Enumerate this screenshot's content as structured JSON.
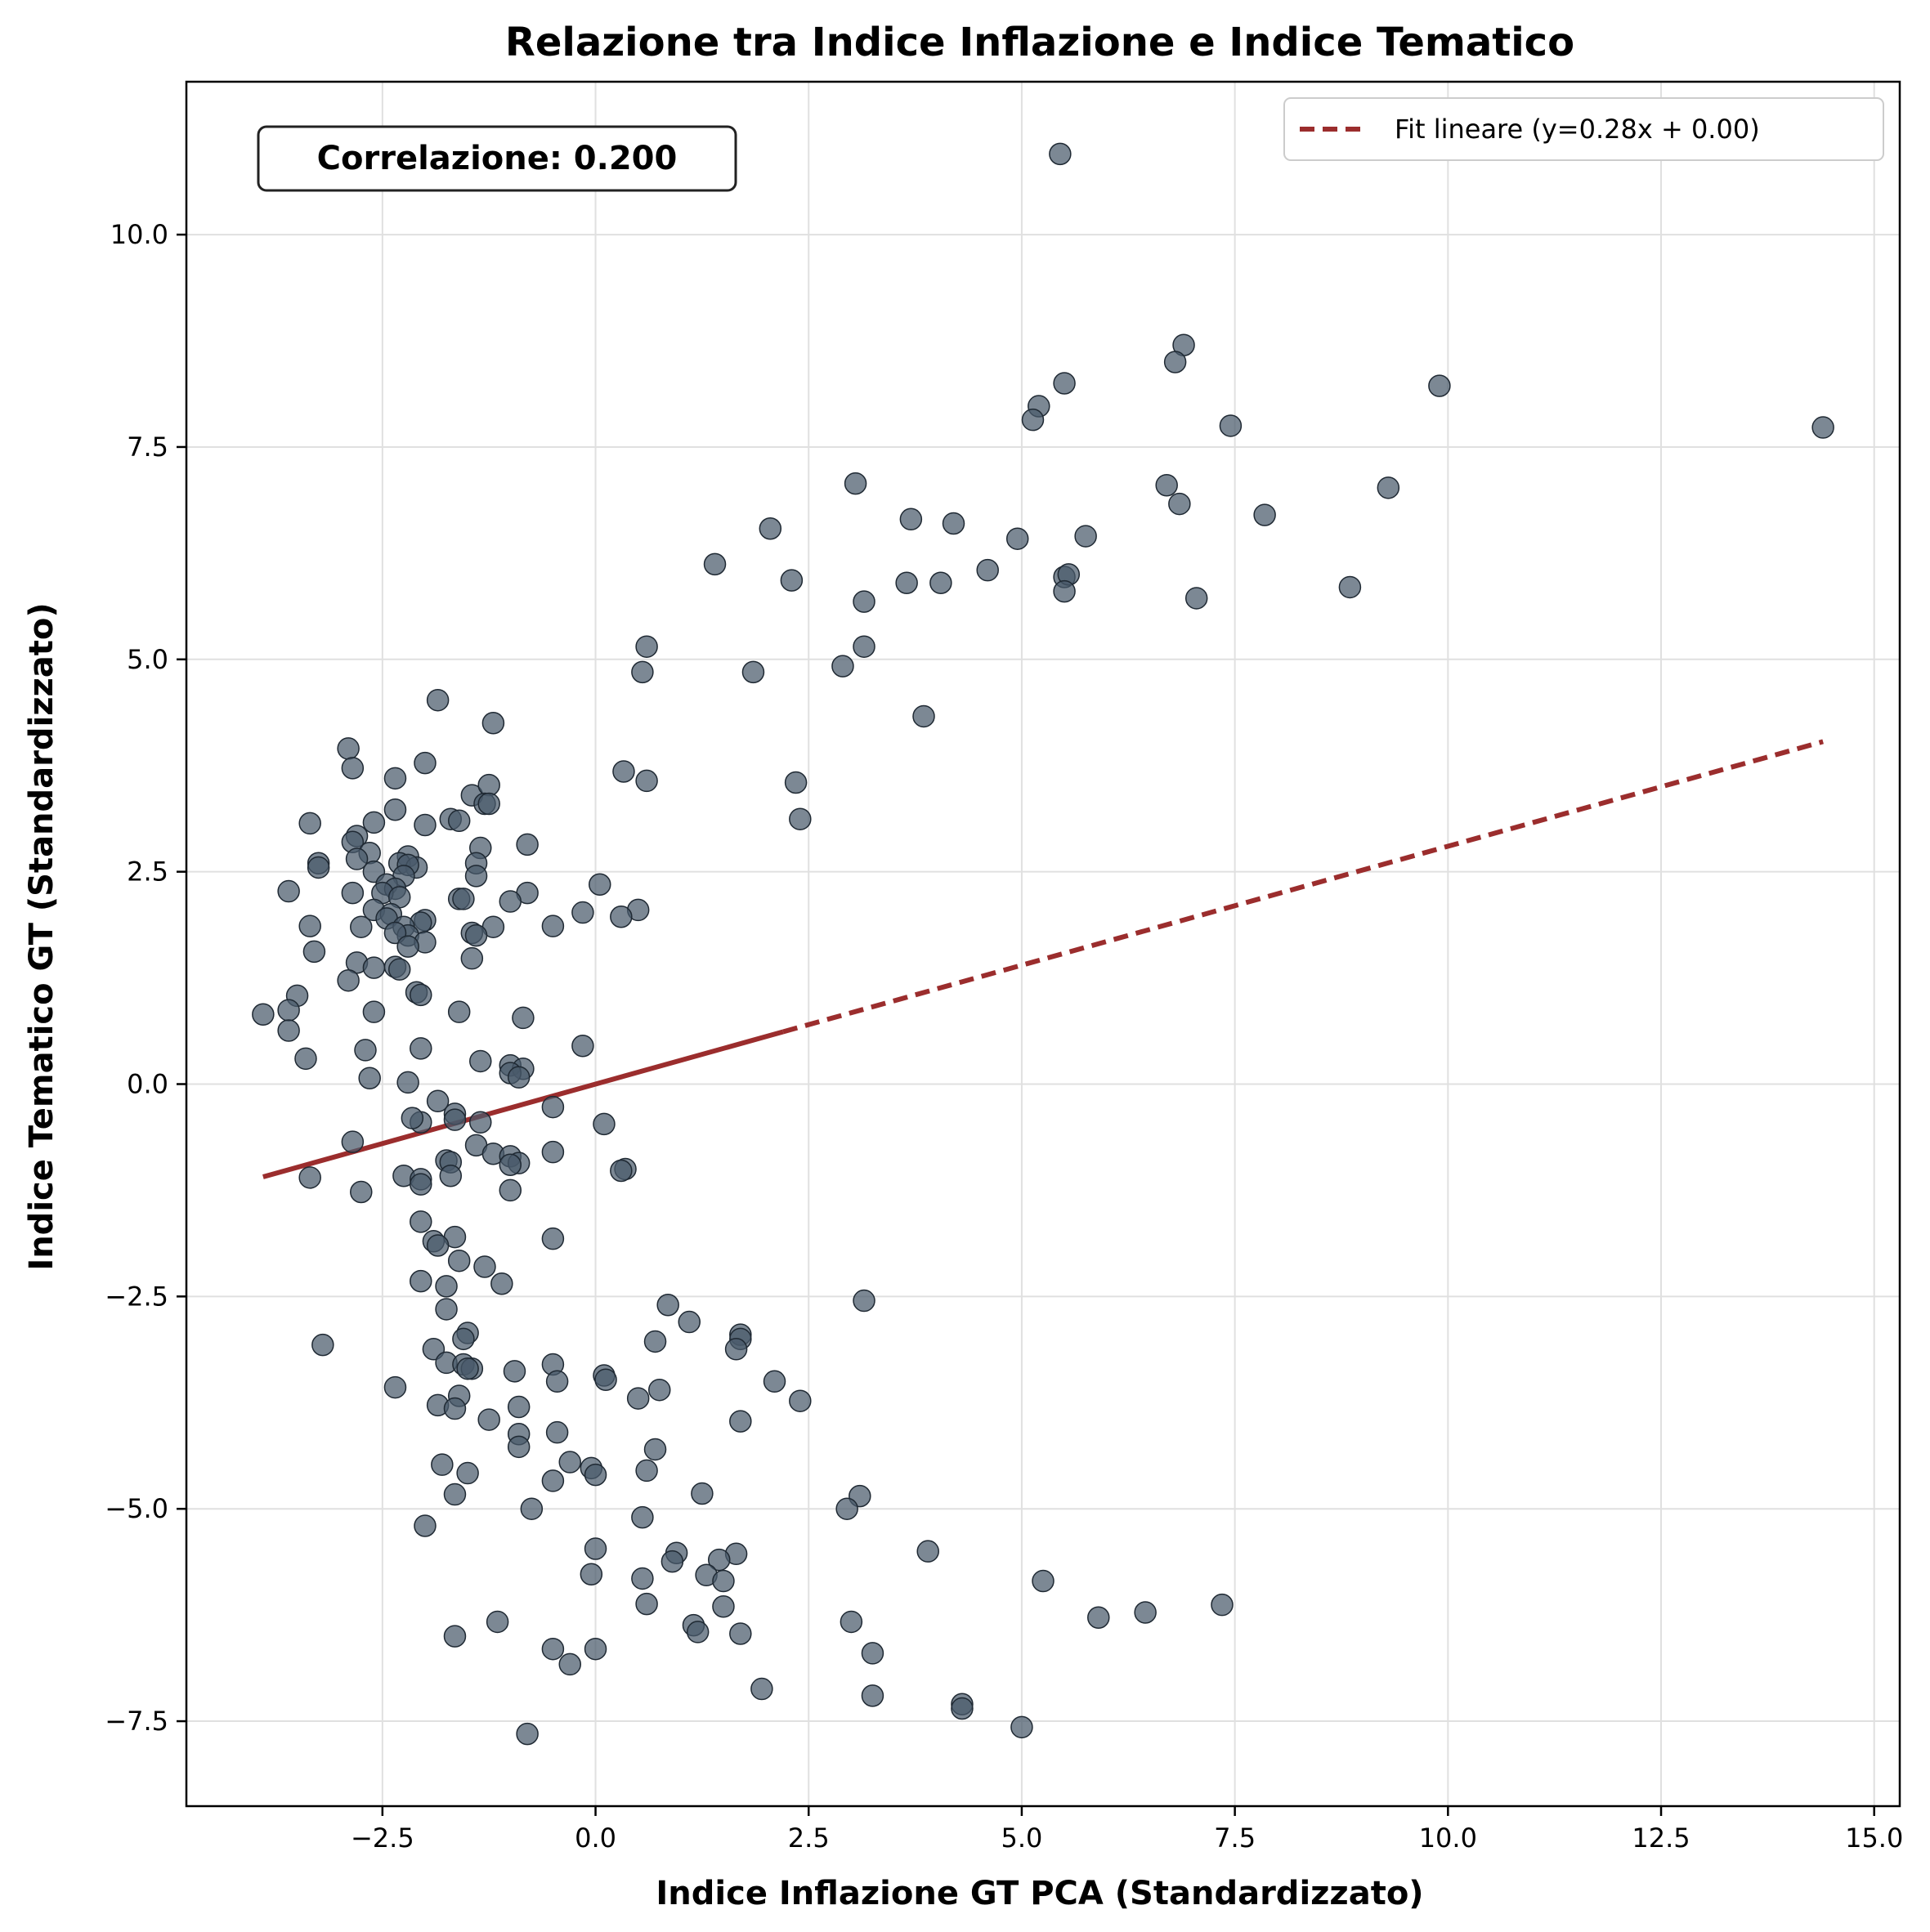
{
  "colors": {
    "points": "#4a5a6b",
    "point_edge": "#1f2933",
    "fit_line": "#9b2d2d",
    "grid": "#e0e0e0",
    "axes": "#000000"
  },
  "chart_data": {
    "type": "scatter",
    "title": "Relazione tra Indice Inflazione e Indice Tematico",
    "xlabel": "Indice Inflazione GT PCA (Standardizzato)",
    "ylabel": "Indice Tematico GT (Standardizzato)",
    "xlim": [
      -4.8,
      15.3
    ],
    "ylim": [
      -8.5,
      11.8
    ],
    "xticks": [
      -2.5,
      0.0,
      2.5,
      5.0,
      7.5,
      10.0,
      12.5,
      15.0
    ],
    "xtick_labels": [
      "−2.5",
      "0.0",
      "2.5",
      "5.0",
      "7.5",
      "10.0",
      "12.5",
      "15.0"
    ],
    "yticks": [
      -7.5,
      -5.0,
      -2.5,
      0.0,
      2.5,
      5.0,
      7.5,
      10.0
    ],
    "ytick_labels": [
      "−7.5",
      "−5.0",
      "−2.5",
      "0.0",
      "2.5",
      "5.0",
      "7.5",
      "10.0"
    ],
    "grid": true,
    "legend": {
      "position": "top-right",
      "entries": [
        "Fit lineare (y=0.28x + 0.00)"
      ]
    },
    "annotation": "Correlazione: 0.200",
    "fit_line": {
      "slope": 0.28,
      "intercept": 0.0,
      "x_start": -3.9,
      "x_end": 14.4,
      "solid_until": 2.2
    },
    "points": [
      [
        5.45,
        10.95
      ],
      [
        6.9,
        8.7
      ],
      [
        6.8,
        8.5
      ],
      [
        5.5,
        8.25
      ],
      [
        9.9,
        8.22
      ],
      [
        14.4,
        7.73
      ],
      [
        7.45,
        7.75
      ],
      [
        5.2,
        7.98
      ],
      [
        5.13,
        7.82
      ],
      [
        3.05,
        7.07
      ],
      [
        6.7,
        7.05
      ],
      [
        9.3,
        7.02
      ],
      [
        6.85,
        6.83
      ],
      [
        7.85,
        6.7
      ],
      [
        3.7,
        6.65
      ],
      [
        4.2,
        6.6
      ],
      [
        2.05,
        6.54
      ],
      [
        5.75,
        6.45
      ],
      [
        4.95,
        6.42
      ],
      [
        1.4,
        6.12
      ],
      [
        4.6,
        6.05
      ],
      [
        5.5,
        5.97
      ],
      [
        5.55,
        6.0
      ],
      [
        2.3,
        5.93
      ],
      [
        3.65,
        5.9
      ],
      [
        4.05,
        5.9
      ],
      [
        8.85,
        5.85
      ],
      [
        5.5,
        5.8
      ],
      [
        7.05,
        5.72
      ],
      [
        3.15,
        5.68
      ],
      [
        0.6,
        5.15
      ],
      [
        3.15,
        5.15
      ],
      [
        2.9,
        4.92
      ],
      [
        1.85,
        4.85
      ],
      [
        0.55,
        4.85
      ],
      [
        3.85,
        4.33
      ],
      [
        -1.85,
        4.52
      ],
      [
        -1.2,
        4.25
      ],
      [
        -2.9,
        3.95
      ],
      [
        -2.85,
        3.72
      ],
      [
        -2.0,
        3.78
      ],
      [
        0.33,
        3.68
      ],
      [
        -2.35,
        3.6
      ],
      [
        0.6,
        3.57
      ],
      [
        2.35,
        3.55
      ],
      [
        -1.45,
        3.4
      ],
      [
        -1.25,
        3.52
      ],
      [
        -1.3,
        3.3
      ],
      [
        -1.25,
        3.3
      ],
      [
        2.4,
        3.12
      ],
      [
        -1.7,
        3.12
      ],
      [
        -1.6,
        3.1
      ],
      [
        -3.35,
        3.07
      ],
      [
        -2.6,
        3.08
      ],
      [
        -2.0,
        3.05
      ],
      [
        -2.35,
        3.23
      ],
      [
        -2.8,
        2.92
      ],
      [
        -2.85,
        2.85
      ],
      [
        -1.35,
        2.78
      ],
      [
        -0.8,
        2.82
      ],
      [
        -2.65,
        2.72
      ],
      [
        -2.8,
        2.65
      ],
      [
        -2.2,
        2.68
      ],
      [
        -2.3,
        2.6
      ],
      [
        -2.1,
        2.55
      ],
      [
        -3.25,
        2.6
      ],
      [
        -3.25,
        2.55
      ],
      [
        -1.4,
        2.6
      ],
      [
        -2.2,
        2.58
      ],
      [
        -2.6,
        2.5
      ],
      [
        -1.4,
        2.45
      ],
      [
        -2.25,
        2.45
      ],
      [
        0.05,
        2.35
      ],
      [
        -2.45,
        2.35
      ],
      [
        -2.35,
        2.3
      ],
      [
        -2.5,
        2.25
      ],
      [
        -2.85,
        2.25
      ],
      [
        -3.6,
        2.27
      ],
      [
        -0.8,
        2.25
      ],
      [
        -2.3,
        2.2
      ],
      [
        -1.6,
        2.18
      ],
      [
        -1.55,
        2.18
      ],
      [
        -1.0,
        2.15
      ],
      [
        -2.6,
        2.05
      ],
      [
        -2.4,
        2.0
      ],
      [
        -2.45,
        1.95
      ],
      [
        0.5,
        2.05
      ],
      [
        -0.15,
        2.02
      ],
      [
        0.3,
        1.97
      ],
      [
        -2.0,
        1.93
      ],
      [
        -2.05,
        1.9
      ],
      [
        -2.25,
        1.85
      ],
      [
        -2.75,
        1.85
      ],
      [
        -3.35,
        1.86
      ],
      [
        -1.2,
        1.85
      ],
      [
        -0.5,
        1.86
      ],
      [
        -1.45,
        1.78
      ],
      [
        -2.2,
        1.75
      ],
      [
        -1.4,
        1.75
      ],
      [
        -2.35,
        1.78
      ],
      [
        -2.0,
        1.67
      ],
      [
        -2.2,
        1.62
      ],
      [
        -3.3,
        1.56
      ],
      [
        -1.45,
        1.48
      ],
      [
        -2.35,
        1.38
      ],
      [
        -2.8,
        1.43
      ],
      [
        -2.3,
        1.35
      ],
      [
        -2.6,
        1.37
      ],
      [
        -2.9,
        1.22
      ],
      [
        -2.1,
        1.08
      ],
      [
        -2.05,
        1.05
      ],
      [
        -3.5,
        1.04
      ],
      [
        -1.6,
        0.85
      ],
      [
        -2.6,
        0.85
      ],
      [
        -3.6,
        0.87
      ],
      [
        -3.9,
        0.82
      ],
      [
        -0.85,
        0.78
      ],
      [
        -3.6,
        0.63
      ],
      [
        -0.15,
        0.45
      ],
      [
        -2.05,
        0.42
      ],
      [
        -2.7,
        0.4
      ],
      [
        -3.4,
        0.3
      ],
      [
        -1.35,
        0.27
      ],
      [
        -1.0,
        0.22
      ],
      [
        -0.85,
        0.18
      ],
      [
        -1.0,
        0.13
      ],
      [
        -0.9,
        0.08
      ],
      [
        -2.65,
        0.07
      ],
      [
        -2.2,
        0.02
      ],
      [
        -1.85,
        -0.2
      ],
      [
        -0.5,
        -0.27
      ],
      [
        -1.65,
        -0.35
      ],
      [
        -1.65,
        -0.42
      ],
      [
        -2.05,
        -0.45
      ],
      [
        -2.15,
        -0.4
      ],
      [
        -1.35,
        -0.45
      ],
      [
        0.1,
        -0.47
      ],
      [
        -2.85,
        -0.68
      ],
      [
        -1.4,
        -0.72
      ],
      [
        -0.5,
        -0.8
      ],
      [
        -1.2,
        -0.82
      ],
      [
        -1.0,
        -0.85
      ],
      [
        -1.75,
        -0.9
      ],
      [
        -1.7,
        -0.92
      ],
      [
        -0.9,
        -0.93
      ],
      [
        -1.0,
        -0.95
      ],
      [
        0.35,
        -1.0
      ],
      [
        0.3,
        -1.02
      ],
      [
        -2.25,
        -1.08
      ],
      [
        -1.7,
        -1.08
      ],
      [
        -3.35,
        -1.1
      ],
      [
        -2.05,
        -1.12
      ],
      [
        -2.05,
        -1.18
      ],
      [
        -1.0,
        -1.25
      ],
      [
        -2.75,
        -1.27
      ],
      [
        -2.05,
        -1.62
      ],
      [
        -1.65,
        -1.8
      ],
      [
        -0.5,
        -1.82
      ],
      [
        -1.9,
        -1.85
      ],
      [
        -1.85,
        -1.9
      ],
      [
        -1.6,
        -2.08
      ],
      [
        -1.3,
        -2.15
      ],
      [
        -2.05,
        -2.32
      ],
      [
        -1.1,
        -2.35
      ],
      [
        -1.75,
        -2.38
      ],
      [
        3.15,
        -2.55
      ],
      [
        0.85,
        -2.6
      ],
      [
        -1.75,
        -2.65
      ],
      [
        1.1,
        -2.8
      ],
      [
        -1.5,
        -2.93
      ],
      [
        1.7,
        -2.95
      ],
      [
        -1.55,
        -3.0
      ],
      [
        0.7,
        -3.03
      ],
      [
        1.7,
        -3.0
      ],
      [
        -3.2,
        -3.07
      ],
      [
        -1.9,
        -3.12
      ],
      [
        1.65,
        -3.12
      ],
      [
        -1.75,
        -3.28
      ],
      [
        -0.5,
        -3.3
      ],
      [
        -1.55,
        -3.3
      ],
      [
        -1.45,
        -3.35
      ],
      [
        -1.5,
        -3.35
      ],
      [
        -0.95,
        -3.38
      ],
      [
        0.1,
        -3.43
      ],
      [
        0.12,
        -3.48
      ],
      [
        2.1,
        -3.5
      ],
      [
        -0.45,
        -3.5
      ],
      [
        -2.35,
        -3.57
      ],
      [
        0.75,
        -3.6
      ],
      [
        -1.6,
        -3.67
      ],
      [
        0.5,
        -3.7
      ],
      [
        2.4,
        -3.73
      ],
      [
        -1.85,
        -3.78
      ],
      [
        -0.9,
        -3.8
      ],
      [
        -1.65,
        -3.82
      ],
      [
        -1.25,
        -3.95
      ],
      [
        1.7,
        -3.97
      ],
      [
        -0.45,
        -4.1
      ],
      [
        -0.9,
        -4.12
      ],
      [
        -0.9,
        -4.27
      ],
      [
        0.7,
        -4.3
      ],
      [
        -0.3,
        -4.45
      ],
      [
        -1.8,
        -4.48
      ],
      [
        -0.05,
        -4.52
      ],
      [
        0.6,
        -4.55
      ],
      [
        -1.5,
        -4.58
      ],
      [
        0.0,
        -4.6
      ],
      [
        -0.5,
        -4.67
      ],
      [
        1.25,
        -4.82
      ],
      [
        -1.65,
        -4.83
      ],
      [
        3.1,
        -4.85
      ],
      [
        2.95,
        -5.0
      ],
      [
        -0.75,
        -5.0
      ],
      [
        0.55,
        -5.1
      ],
      [
        -2.0,
        -5.2
      ],
      [
        0.0,
        -5.47
      ],
      [
        3.9,
        -5.5
      ],
      [
        0.95,
        -5.52
      ],
      [
        1.65,
        -5.53
      ],
      [
        0.9,
        -5.62
      ],
      [
        1.45,
        -5.6
      ],
      [
        -0.05,
        -5.77
      ],
      [
        1.3,
        -5.78
      ],
      [
        0.55,
        -5.82
      ],
      [
        1.5,
        -5.85
      ],
      [
        5.25,
        -5.85
      ],
      [
        0.6,
        -6.12
      ],
      [
        1.5,
        -6.15
      ],
      [
        7.35,
        -6.13
      ],
      [
        6.45,
        -6.22
      ],
      [
        5.9,
        -6.28
      ],
      [
        3.0,
        -6.33
      ],
      [
        -1.15,
        -6.33
      ],
      [
        1.15,
        -6.37
      ],
      [
        1.2,
        -6.45
      ],
      [
        1.7,
        -6.47
      ],
      [
        -1.65,
        -6.5
      ],
      [
        -0.5,
        -6.65
      ],
      [
        0.0,
        -6.65
      ],
      [
        3.25,
        -6.7
      ],
      [
        -0.3,
        -6.83
      ],
      [
        1.95,
        -7.12
      ],
      [
        3.25,
        -7.2
      ],
      [
        4.3,
        -7.3
      ],
      [
        4.3,
        -7.35
      ],
      [
        5.0,
        -7.57
      ],
      [
        -0.8,
        -7.65
      ]
    ]
  }
}
